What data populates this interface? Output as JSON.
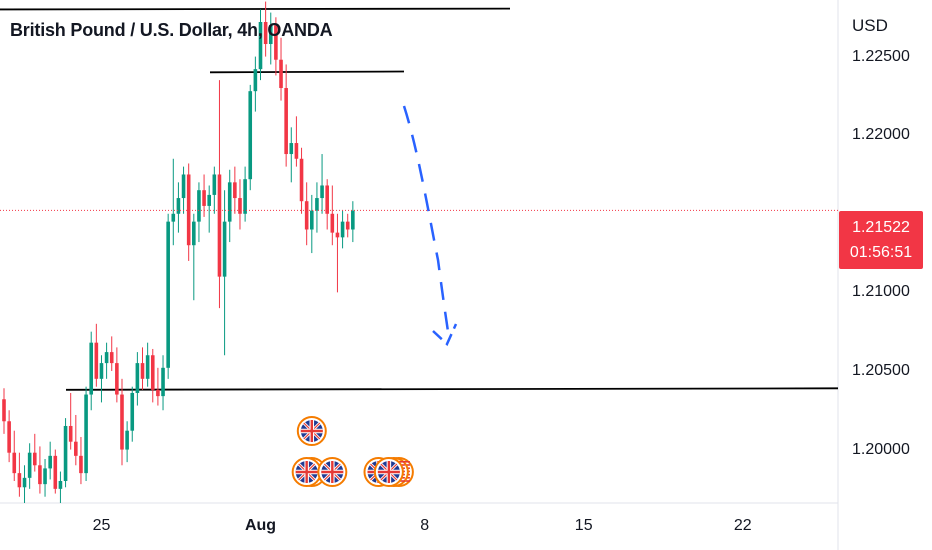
{
  "chart_data": {
    "type": "candlestick",
    "title": "British Pound / U.S. Dollar, 4h, OANDA",
    "currency": "USD",
    "y_ticks": [
      "1.22500",
      "1.22000",
      "1.21000",
      "1.20500",
      "1.20000"
    ],
    "y_tick_values": [
      1.225,
      1.22,
      1.21,
      1.205,
      1.2
    ],
    "x_ticks": [
      {
        "label": "25",
        "bold": false
      },
      {
        "label": "Aug",
        "bold": true
      },
      {
        "label": "8",
        "bold": false
      },
      {
        "label": "15",
        "bold": false
      },
      {
        "label": "22",
        "bold": false
      }
    ],
    "ylim": [
      1.1966,
      1.2286
    ],
    "last_price": "1.21522",
    "last_price_value": 1.21522,
    "countdown": "01:56:51",
    "colors": {
      "up": "#089981",
      "down": "#f23645",
      "projection": "#2962ff",
      "line": "#000000"
    },
    "levels": [
      {
        "name": "resistance-high",
        "value": 1.228
      },
      {
        "name": "resistance-mid",
        "value": 1.224
      },
      {
        "name": "support",
        "value": 1.2038
      }
    ],
    "ohlc": [
      [
        1.2032,
        1.2039,
        1.201,
        1.2018
      ],
      [
        1.2018,
        1.2025,
        1.1992,
        1.1998
      ],
      [
        1.1998,
        1.2012,
        1.198,
        1.1985
      ],
      [
        1.1985,
        1.1998,
        1.197,
        1.1976
      ],
      [
        1.1976,
        1.199,
        1.1966,
        1.1982
      ],
      [
        1.1982,
        1.2004,
        1.1975,
        1.1998
      ],
      [
        1.1998,
        1.201,
        1.1986,
        1.199
      ],
      [
        1.199,
        1.2002,
        1.1972,
        1.1978
      ],
      [
        1.1978,
        1.1994,
        1.197,
        1.1988
      ],
      [
        1.1988,
        1.2005,
        1.1981,
        1.1996
      ],
      [
        1.1996,
        1.2,
        1.1972,
        1.1975
      ],
      [
        1.1975,
        1.1986,
        1.1966,
        1.198
      ],
      [
        1.198,
        1.202,
        1.1976,
        1.2015
      ],
      [
        1.2015,
        1.2036,
        1.2,
        1.2005
      ],
      [
        1.2005,
        1.2022,
        1.199,
        1.1996
      ],
      [
        1.1996,
        1.2008,
        1.1978,
        1.1985
      ],
      [
        1.1985,
        1.204,
        1.198,
        1.2035
      ],
      [
        1.2035,
        1.2075,
        1.2025,
        1.2068
      ],
      [
        1.2068,
        1.208,
        1.204,
        1.2045
      ],
      [
        1.2045,
        1.206,
        1.203,
        1.2055
      ],
      [
        1.2055,
        1.2068,
        1.2045,
        1.2062
      ],
      [
        1.2062,
        1.2072,
        1.205,
        1.2055
      ],
      [
        1.2055,
        1.2065,
        1.203,
        1.2035
      ],
      [
        1.2035,
        1.2045,
        1.199,
        1.2
      ],
      [
        1.2,
        1.2018,
        1.1992,
        1.2012
      ],
      [
        1.2012,
        1.204,
        1.2005,
        1.2036
      ],
      [
        1.2036,
        1.2062,
        1.2028,
        1.2055
      ],
      [
        1.2055,
        1.2065,
        1.2038,
        1.2045
      ],
      [
        1.2045,
        1.2068,
        1.204,
        1.206
      ],
      [
        1.206,
        1.2064,
        1.203,
        1.2038
      ],
      [
        1.2038,
        1.2052,
        1.2028,
        1.2034
      ],
      [
        1.2034,
        1.206,
        1.2025,
        1.2052
      ],
      [
        1.2052,
        1.215,
        1.2045,
        1.2145
      ],
      [
        1.2145,
        1.2185,
        1.213,
        1.215
      ],
      [
        1.215,
        1.217,
        1.2138,
        1.216
      ],
      [
        1.216,
        1.218,
        1.215,
        1.2175
      ],
      [
        1.2175,
        1.2182,
        1.212,
        1.213
      ],
      [
        1.213,
        1.215,
        1.2095,
        1.2145
      ],
      [
        1.2145,
        1.217,
        1.2132,
        1.2165
      ],
      [
        1.2165,
        1.2175,
        1.2148,
        1.2155
      ],
      [
        1.2155,
        1.2168,
        1.2138,
        1.2162
      ],
      [
        1.2162,
        1.218,
        1.215,
        1.2175
      ],
      [
        1.2175,
        1.2235,
        1.209,
        1.211
      ],
      [
        1.211,
        1.2165,
        1.206,
        1.2145
      ],
      [
        1.2145,
        1.2178,
        1.2132,
        1.217
      ],
      [
        1.217,
        1.218,
        1.215,
        1.216
      ],
      [
        1.216,
        1.2172,
        1.214,
        1.215
      ],
      [
        1.215,
        1.218,
        1.2145,
        1.2172
      ],
      [
        1.2172,
        1.2232,
        1.2165,
        1.2228
      ],
      [
        1.2228,
        1.225,
        1.2215,
        1.2242
      ],
      [
        1.2242,
        1.228,
        1.2235,
        1.2272
      ],
      [
        1.2272,
        1.2285,
        1.225,
        1.2258
      ],
      [
        1.2258,
        1.2278,
        1.2245,
        1.227
      ],
      [
        1.227,
        1.2275,
        1.2238,
        1.2248
      ],
      [
        1.2248,
        1.2262,
        1.2222,
        1.223
      ],
      [
        1.223,
        1.2245,
        1.218,
        1.2188
      ],
      [
        1.2188,
        1.2205,
        1.217,
        1.2195
      ],
      [
        1.2195,
        1.2212,
        1.218,
        1.2185
      ],
      [
        1.2185,
        1.2192,
        1.215,
        1.2158
      ],
      [
        1.2158,
        1.217,
        1.213,
        1.214
      ],
      [
        1.214,
        1.2162,
        1.2125,
        1.2152
      ],
      [
        1.2152,
        1.217,
        1.2138,
        1.216
      ],
      [
        1.216,
        1.2188,
        1.215,
        1.2168
      ],
      [
        1.2168,
        1.2172,
        1.214,
        1.215
      ],
      [
        1.215,
        1.2168,
        1.213,
        1.2138
      ],
      [
        1.2138,
        1.215,
        1.21,
        1.2135
      ],
      [
        1.2135,
        1.2152,
        1.2128,
        1.2145
      ],
      [
        1.2145,
        1.215,
        1.2135,
        1.214
      ],
      [
        1.214,
        1.2158,
        1.2132,
        1.2152
      ]
    ],
    "events": [
      {
        "icon": "uk-flag-icon",
        "count": 1,
        "row": 1,
        "candle": 60
      },
      {
        "icon": "uk-flag-icon",
        "count": 2,
        "row": 2,
        "candle": 59
      },
      {
        "icon": "uk-flag-icon",
        "count": 1,
        "row": 2,
        "candle": 64
      },
      {
        "icon": "uk-flag-icon",
        "count": 1,
        "row": 2,
        "candle": 73
      },
      {
        "icon": "us-flag-icon",
        "count": 2,
        "row": 2,
        "candle": 76
      }
    ]
  }
}
